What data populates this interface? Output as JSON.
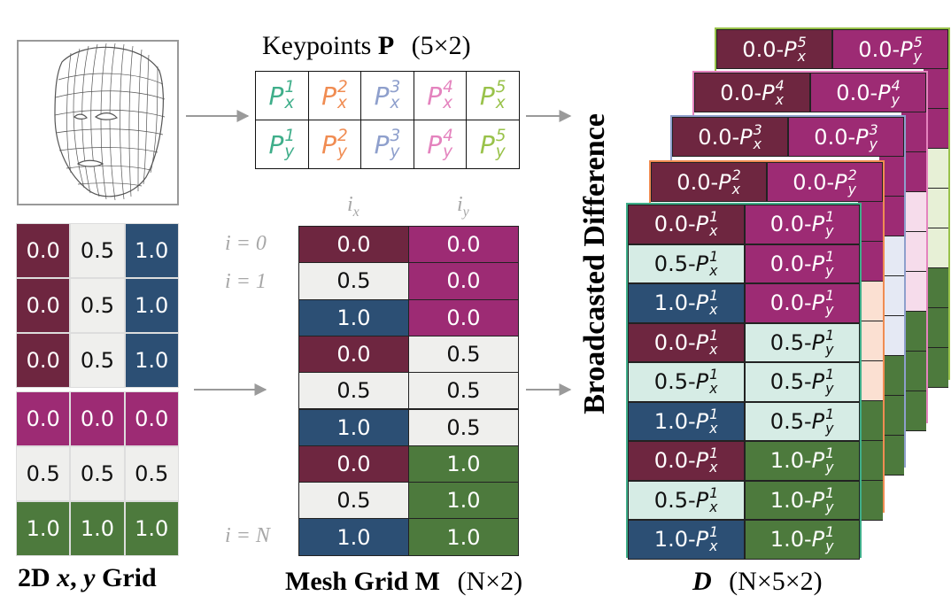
{
  "colors": {
    "c0": "#6e2640",
    "c05": "#efefed",
    "c1": "#2c4f74",
    "magenta": "#9d2b74",
    "green": "#4d7a3d",
    "kp1": "#3fae8a",
    "kp2": "#f08c52",
    "kp3": "#8e9fcc",
    "kp4": "#e483be",
    "kp5": "#99c24a"
  },
  "keypoints": {
    "title": "Keypoints",
    "title_bold": "P",
    "title_dims": "(5×2)",
    "rows": [
      {
        "var": "P",
        "sub": "x",
        "sups": [
          "1",
          "2",
          "3",
          "4",
          "5"
        ]
      },
      {
        "var": "P",
        "sub": "y",
        "sups": [
          "1",
          "2",
          "3",
          "4",
          "5"
        ]
      }
    ]
  },
  "grid2d": {
    "label_parts": [
      "2D",
      "x",
      ",",
      "y",
      "Grid"
    ],
    "x_block": [
      [
        "0.0",
        "0.5",
        "1.0"
      ],
      [
        "0.0",
        "0.5",
        "1.0"
      ],
      [
        "0.0",
        "0.5",
        "1.0"
      ]
    ],
    "y_block": [
      [
        "0.0",
        "0.0",
        "0.0"
      ],
      [
        "0.5",
        "0.5",
        "0.5"
      ],
      [
        "1.0",
        "1.0",
        "1.0"
      ]
    ]
  },
  "mesh": {
    "label": "Mesh Grid",
    "label_bold": "M",
    "label_dims": "(N×2)",
    "col_headers": [
      {
        "var": "i",
        "sub": "x"
      },
      {
        "var": "i",
        "sub": "y"
      }
    ],
    "row_labels": [
      "i = 0",
      "i = 1",
      "i = N"
    ],
    "rows": [
      [
        "0.0",
        "0.0"
      ],
      [
        "0.5",
        "0.0"
      ],
      [
        "1.0",
        "0.0"
      ],
      [
        "0.0",
        "0.5"
      ],
      [
        "0.5",
        "0.5"
      ],
      [
        "1.0",
        "0.5"
      ],
      [
        "0.0",
        "1.0"
      ],
      [
        "0.5",
        "1.0"
      ],
      [
        "1.0",
        "1.0"
      ]
    ]
  },
  "diff": {
    "side_label": "Broadcasted Difference",
    "label_var": "D",
    "label_dims": "(N×5×2)",
    "front_rows": [
      [
        "0.0",
        "0.0"
      ],
      [
        "0.5",
        "0.0"
      ],
      [
        "1.0",
        "0.0"
      ],
      [
        "0.0",
        "0.5"
      ],
      [
        "0.5",
        "0.5"
      ],
      [
        "1.0",
        "0.5"
      ],
      [
        "0.0",
        "1.0"
      ],
      [
        "0.5",
        "1.0"
      ],
      [
        "1.0",
        "1.0"
      ]
    ],
    "layer_headers": [
      {
        "sup": "2",
        "x": "0.0",
        "y": "0.0"
      },
      {
        "sup": "3",
        "x": "0.0",
        "y": "0.0"
      },
      {
        "sup": "4",
        "x": "0.0",
        "y": "0.0"
      },
      {
        "sup": "5",
        "x": "0.0",
        "y": "0.0"
      }
    ]
  }
}
